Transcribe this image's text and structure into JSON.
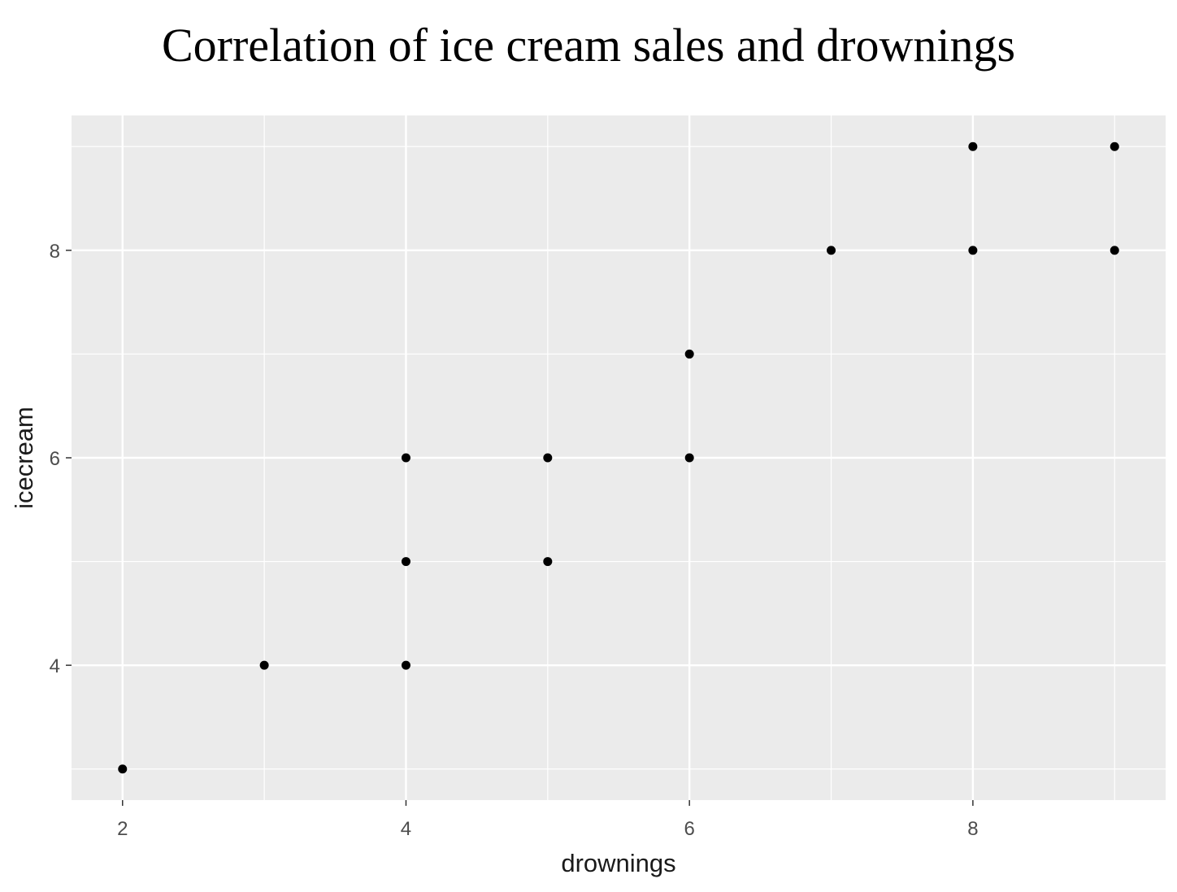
{
  "chart_data": {
    "type": "scatter",
    "title": "Correlation of ice cream sales and drownings",
    "xlabel": "drownings",
    "ylabel": "icecream",
    "xlim": [
      1.64,
      9.36
    ],
    "ylim": [
      2.7,
      9.3
    ],
    "x_major_ticks": [
      2,
      4,
      6,
      8
    ],
    "x_minor_ticks": [
      3,
      5,
      7,
      9
    ],
    "y_major_ticks": [
      4,
      6,
      8
    ],
    "y_minor_ticks": [
      3,
      5,
      7,
      9
    ],
    "grid": true,
    "background": "#ebebeb",
    "gridline_color": "#ffffff",
    "point_color": "#000000",
    "points": [
      {
        "x": 2,
        "y": 3
      },
      {
        "x": 3,
        "y": 4
      },
      {
        "x": 4,
        "y": 4
      },
      {
        "x": 4,
        "y": 5
      },
      {
        "x": 4,
        "y": 6
      },
      {
        "x": 5,
        "y": 5
      },
      {
        "x": 5,
        "y": 6
      },
      {
        "x": 6,
        "y": 6
      },
      {
        "x": 6,
        "y": 7
      },
      {
        "x": 7,
        "y": 8
      },
      {
        "x": 8,
        "y": 8
      },
      {
        "x": 8,
        "y": 9
      },
      {
        "x": 9,
        "y": 8
      },
      {
        "x": 9,
        "y": 9
      }
    ]
  }
}
